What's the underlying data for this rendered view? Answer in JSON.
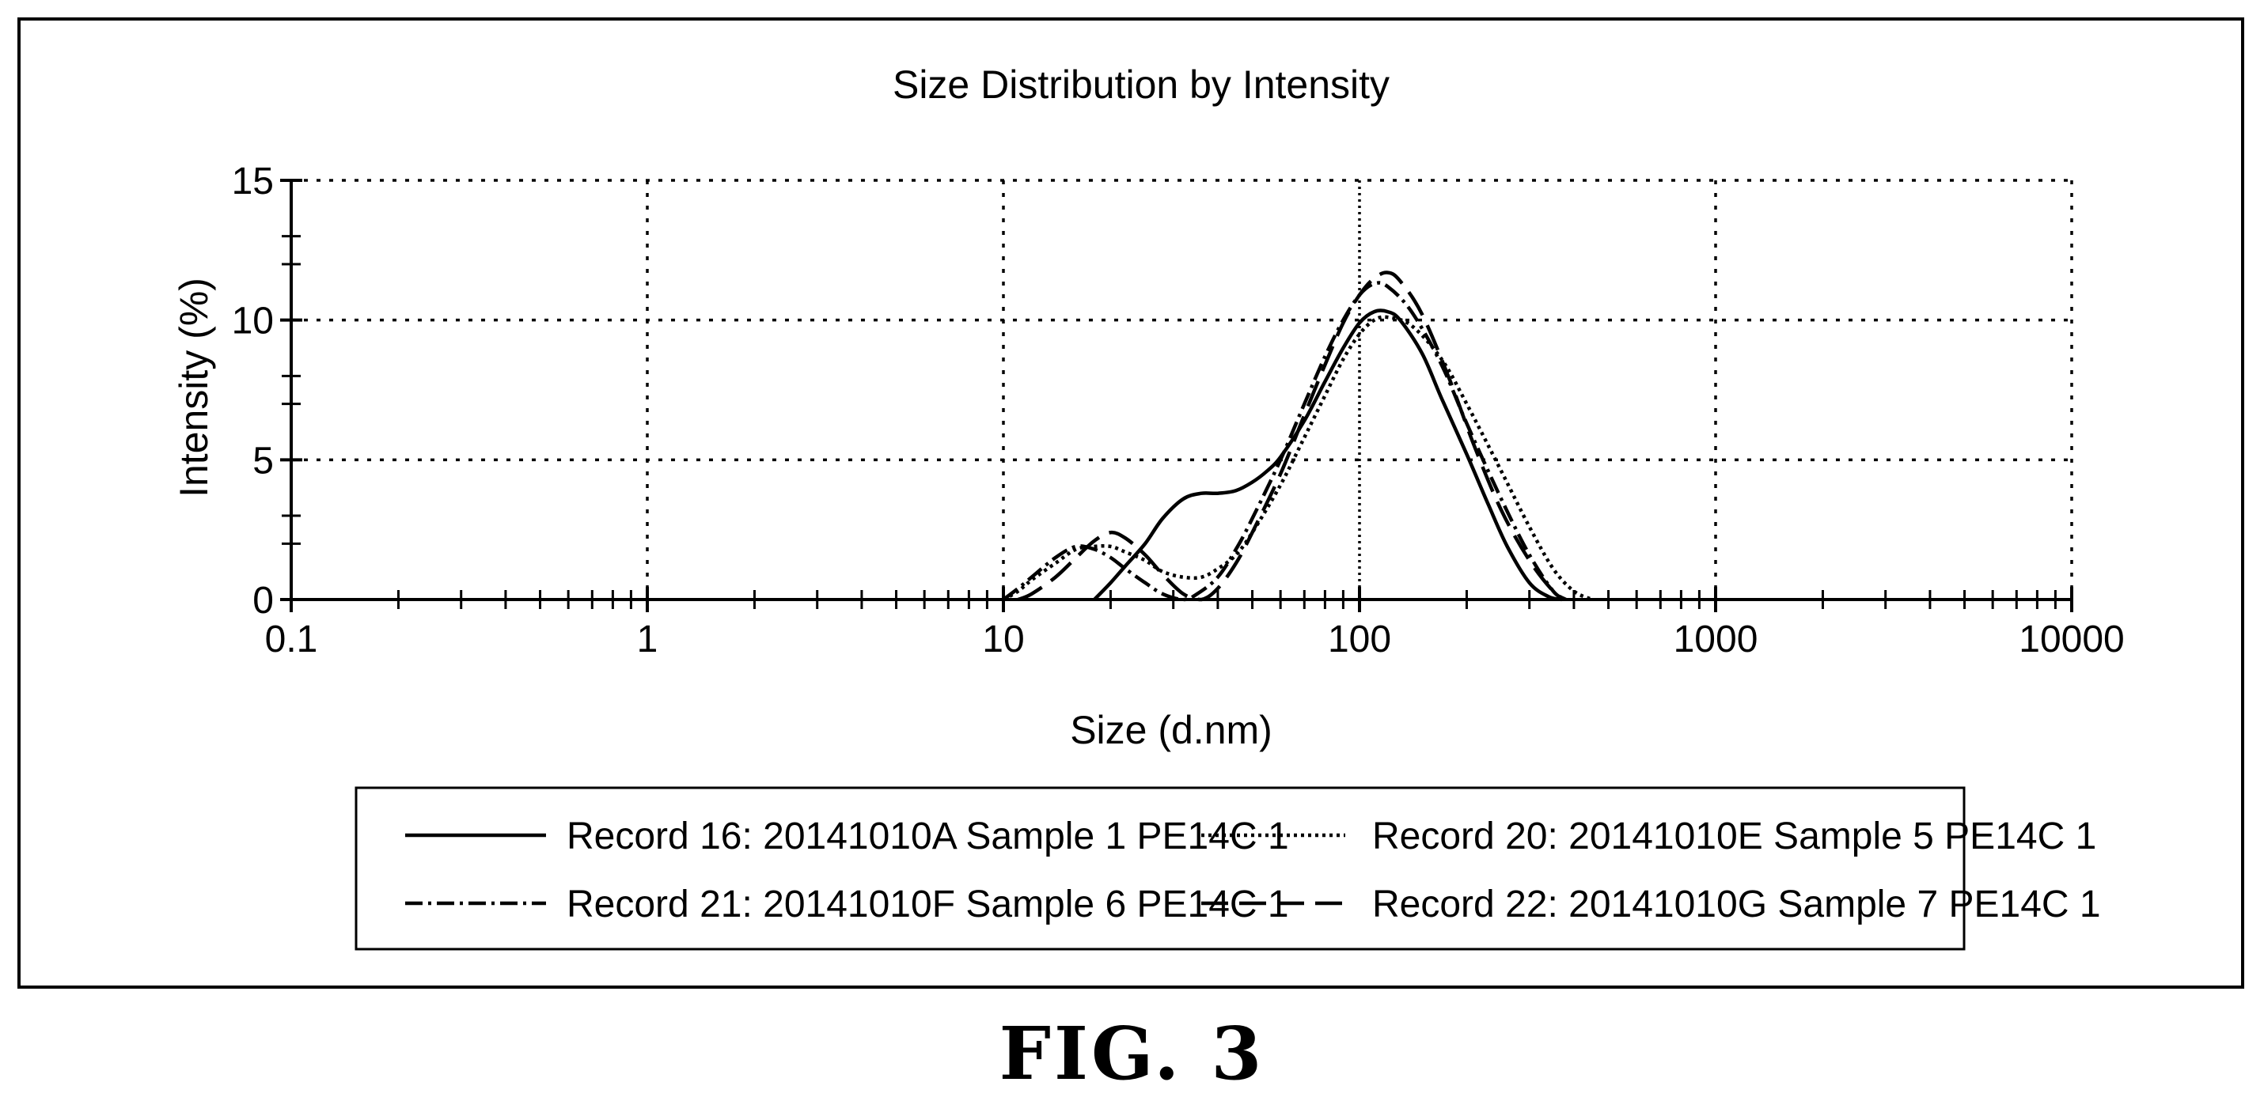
{
  "figure_label": "FIG. 3",
  "chart_data": {
    "type": "line",
    "title": "Size Distribution by Intensity",
    "xlabel": "Size (d.nm)",
    "ylabel": "Intensity (%)",
    "x_scale": "log",
    "xlim": [
      0.1,
      10000
    ],
    "ylim": [
      0,
      15
    ],
    "x_ticks": [
      "0.1",
      "1",
      "10",
      "100",
      "1000",
      "10000"
    ],
    "x_tick_values": [
      0.1,
      1,
      10,
      100,
      1000,
      10000
    ],
    "y_ticks": [
      "0",
      "5",
      "10",
      "15"
    ],
    "y_tick_values": [
      0,
      5,
      10,
      15
    ],
    "grid": true,
    "legend_position": "bottom",
    "series": [
      {
        "name": "Record 16: 20141010A Sample 1 PE14C 1",
        "line_style": "solid",
        "x": [
          18,
          20,
          22,
          25,
          28,
          32,
          36,
          40,
          45,
          50,
          55,
          60,
          70,
          80,
          90,
          100,
          110,
          120,
          130,
          150,
          170,
          200,
          230,
          260,
          300,
          340,
          370
        ],
        "y": [
          0,
          0.6,
          1.2,
          2.0,
          2.9,
          3.6,
          3.8,
          3.8,
          3.9,
          4.2,
          4.6,
          5.1,
          6.4,
          7.8,
          9.0,
          9.9,
          10.3,
          10.3,
          10.0,
          8.8,
          7.2,
          5.2,
          3.4,
          1.9,
          0.6,
          0.1,
          0
        ]
      },
      {
        "name": "Record 20: 20141010E Sample 5 PE14C 1",
        "line_style": "dotted",
        "x": [
          10,
          11,
          12,
          14,
          16,
          18,
          20,
          22,
          25,
          28,
          32,
          36,
          40,
          45,
          50,
          60,
          70,
          80,
          90,
          100,
          110,
          120,
          140,
          170,
          200,
          250,
          300,
          350,
          400,
          450
        ],
        "y": [
          0,
          0.3,
          0.7,
          1.3,
          1.8,
          1.9,
          1.9,
          1.7,
          1.4,
          1.0,
          0.8,
          0.8,
          1.1,
          1.6,
          2.4,
          4.1,
          5.8,
          7.3,
          8.6,
          9.5,
          10.0,
          10.1,
          9.8,
          8.6,
          7.0,
          4.6,
          2.6,
          1.1,
          0.3,
          0
        ]
      },
      {
        "name": "Record 21: 20141010F Sample 6 PE14C 1",
        "line_style": "dash-dot",
        "x": [
          10,
          11,
          12,
          14,
          16,
          18,
          20,
          22,
          25,
          28,
          32,
          35,
          40,
          45,
          50,
          60,
          70,
          80,
          90,
          100,
          110,
          120,
          140,
          170,
          200,
          250,
          300,
          350,
          380
        ],
        "y": [
          0,
          0.4,
          0.8,
          1.5,
          1.9,
          1.8,
          1.5,
          1.1,
          0.6,
          0.2,
          0,
          0.2,
          0.8,
          1.8,
          2.9,
          5.0,
          7.0,
          8.7,
          10.0,
          10.9,
          11.3,
          11.2,
          10.3,
          8.4,
          6.3,
          3.6,
          1.6,
          0.3,
          0
        ]
      },
      {
        "name": "Record 22: 20141010G Sample 7 PE14C 1",
        "line_style": "long-dash",
        "x": [
          11,
          12,
          14,
          16,
          18,
          20,
          22,
          25,
          28,
          32,
          36,
          40,
          45,
          50,
          60,
          70,
          80,
          90,
          100,
          110,
          120,
          130,
          150,
          180,
          210,
          250,
          300,
          350,
          380
        ],
        "y": [
          0,
          0.2,
          0.8,
          1.5,
          2.1,
          2.4,
          2.2,
          1.6,
          0.9,
          0.2,
          0,
          0.4,
          1.3,
          2.4,
          4.5,
          6.6,
          8.4,
          9.9,
          10.9,
          11.5,
          11.7,
          11.4,
          10.2,
          7.8,
          5.5,
          3.2,
          1.4,
          0.3,
          0
        ]
      }
    ]
  }
}
